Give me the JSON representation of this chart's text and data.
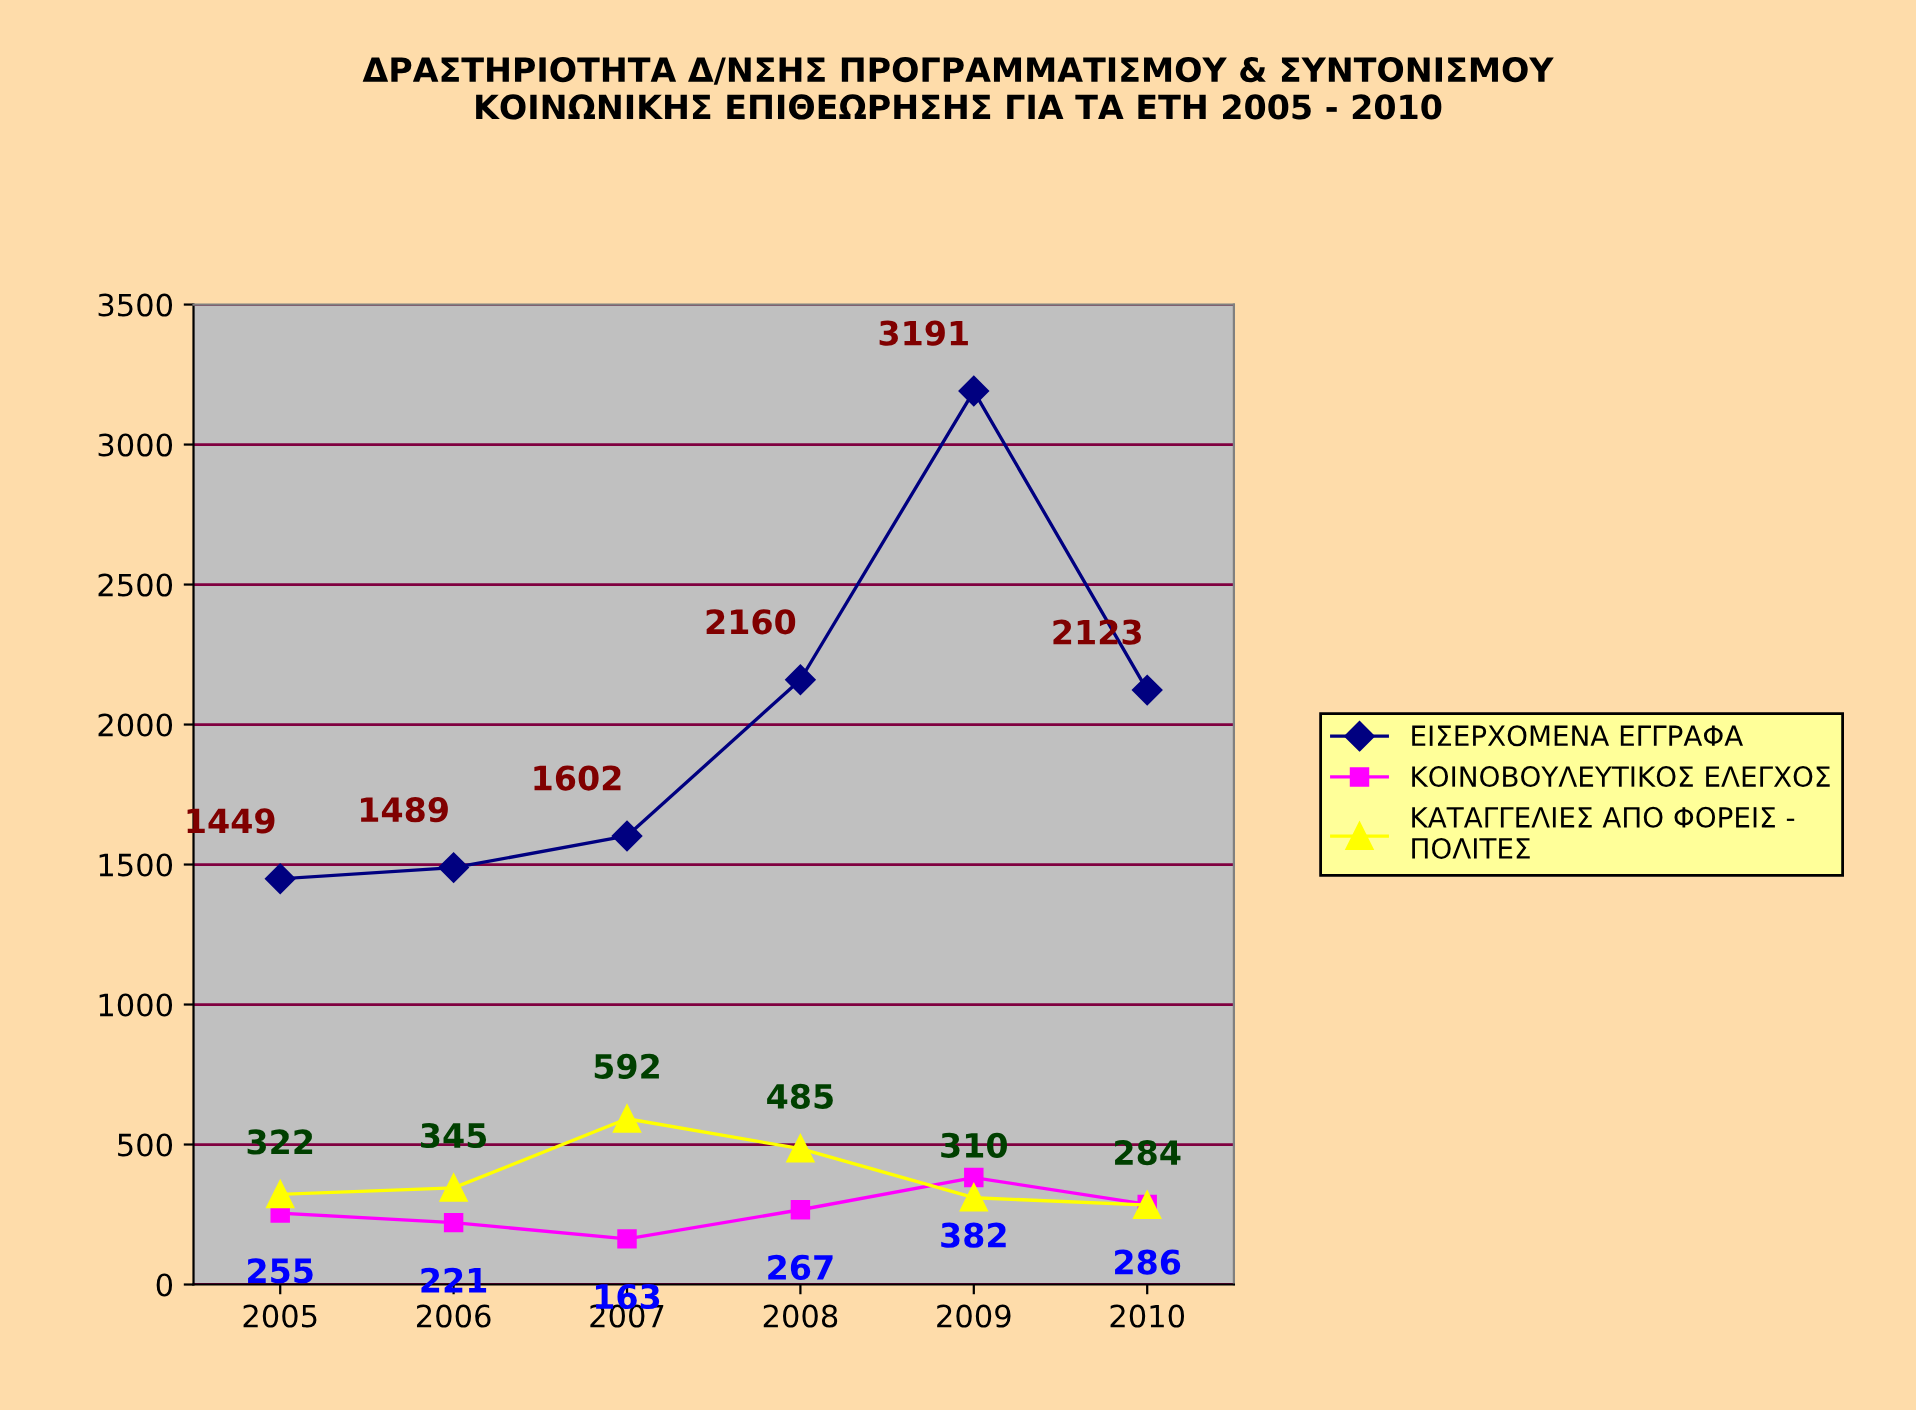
{
  "chart_data": {
    "type": "line",
    "title": "ΔΡΑΣΤΗΡΙΟΤΗΤΑ Δ/ΝΣΗΣ ΠΡΟΓΡΑΜΜΑΤΙΣΜΟΥ & ΣΥΝΤΟΝΙΣΜΟΥ\nΚΟΙΝΩΝΙΚΗΣ ΕΠΙΘΕΩΡΗΣΗΣ ΓΙΑ ΤΑ ΕΤΗ 2005 - 2010",
    "categories": [
      "2005",
      "2006",
      "2007",
      "2008",
      "2009",
      "2010"
    ],
    "series": [
      {
        "name": "ΕΙΣΕΡΧΟΜΕΝΑ ΕΓΓΡΑΦΑ",
        "color": "#000080",
        "marker": "diamond",
        "values": [
          1449,
          1489,
          1602,
          2160,
          3191,
          2123
        ]
      },
      {
        "name": "ΚΟΙΝΟΒΟΥΛΕΥΤΙΚΟΣ ΕΛΕΓΧΟΣ",
        "color": "#ff00ff",
        "marker": "square",
        "values": [
          255,
          221,
          163,
          267,
          382,
          286
        ]
      },
      {
        "name": "ΚΑΤΑΓΓΕΛΙΕΣ ΑΠΟ ΦΟΡΕΙΣ - ΠΟΛΙΤΕΣ",
        "color": "#ffff00",
        "marker": "triangle",
        "values": [
          322,
          345,
          592,
          485,
          310,
          284
        ]
      }
    ],
    "ylim": [
      0,
      3500
    ],
    "yticks": [
      0,
      500,
      1000,
      1500,
      2000,
      2500,
      3000,
      3500
    ],
    "grid": "y",
    "legend": "right",
    "data_labels": true
  }
}
